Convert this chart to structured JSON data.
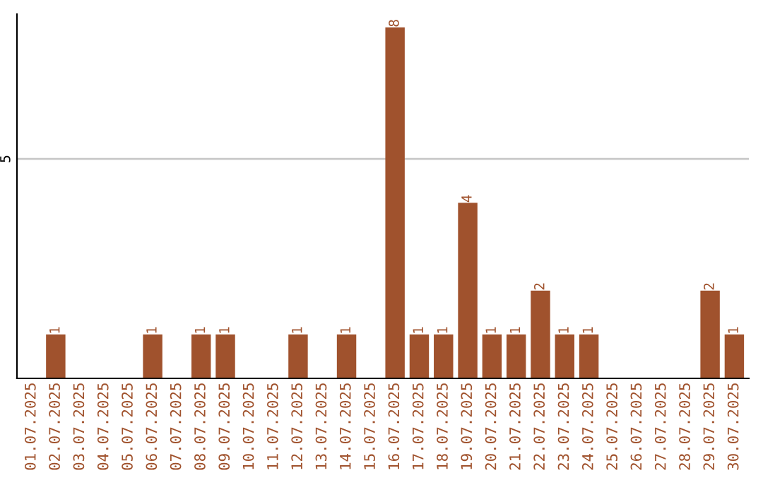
{
  "chart_data": {
    "type": "bar",
    "categories": [
      "01.07.2025",
      "02.07.2025",
      "03.07.2025",
      "04.07.2025",
      "05.07.2025",
      "06.07.2025",
      "07.07.2025",
      "08.07.2025",
      "09.07.2025",
      "10.07.2025",
      "11.07.2025",
      "12.07.2025",
      "13.07.2025",
      "14.07.2025",
      "15.07.2025",
      "16.07.2025",
      "17.07.2025",
      "18.07.2025",
      "19.07.2025",
      "20.07.2025",
      "21.07.2025",
      "22.07.2025",
      "23.07.2025",
      "24.07.2025",
      "25.07.2025",
      "26.07.2025",
      "27.07.2025",
      "28.07.2025",
      "29.07.2025",
      "30.07.2025"
    ],
    "values": [
      0,
      1,
      0,
      0,
      0,
      1,
      0,
      1,
      1,
      0,
      0,
      1,
      0,
      1,
      0,
      8,
      1,
      1,
      4,
      1,
      1,
      2,
      1,
      1,
      0,
      0,
      0,
      0,
      2,
      1
    ],
    "value_labels": [
      null,
      "1",
      null,
      null,
      null,
      "1",
      null,
      "1",
      "1",
      null,
      null,
      "1",
      null,
      "1",
      null,
      "8",
      "1",
      "1",
      "4",
      "1",
      "1",
      "2",
      "1",
      "1",
      null,
      null,
      null,
      null,
      "2",
      "1"
    ],
    "color": "#a0522d",
    "ylim": [
      0,
      8.3
    ],
    "yticks": [
      5
    ],
    "grid": "y"
  }
}
